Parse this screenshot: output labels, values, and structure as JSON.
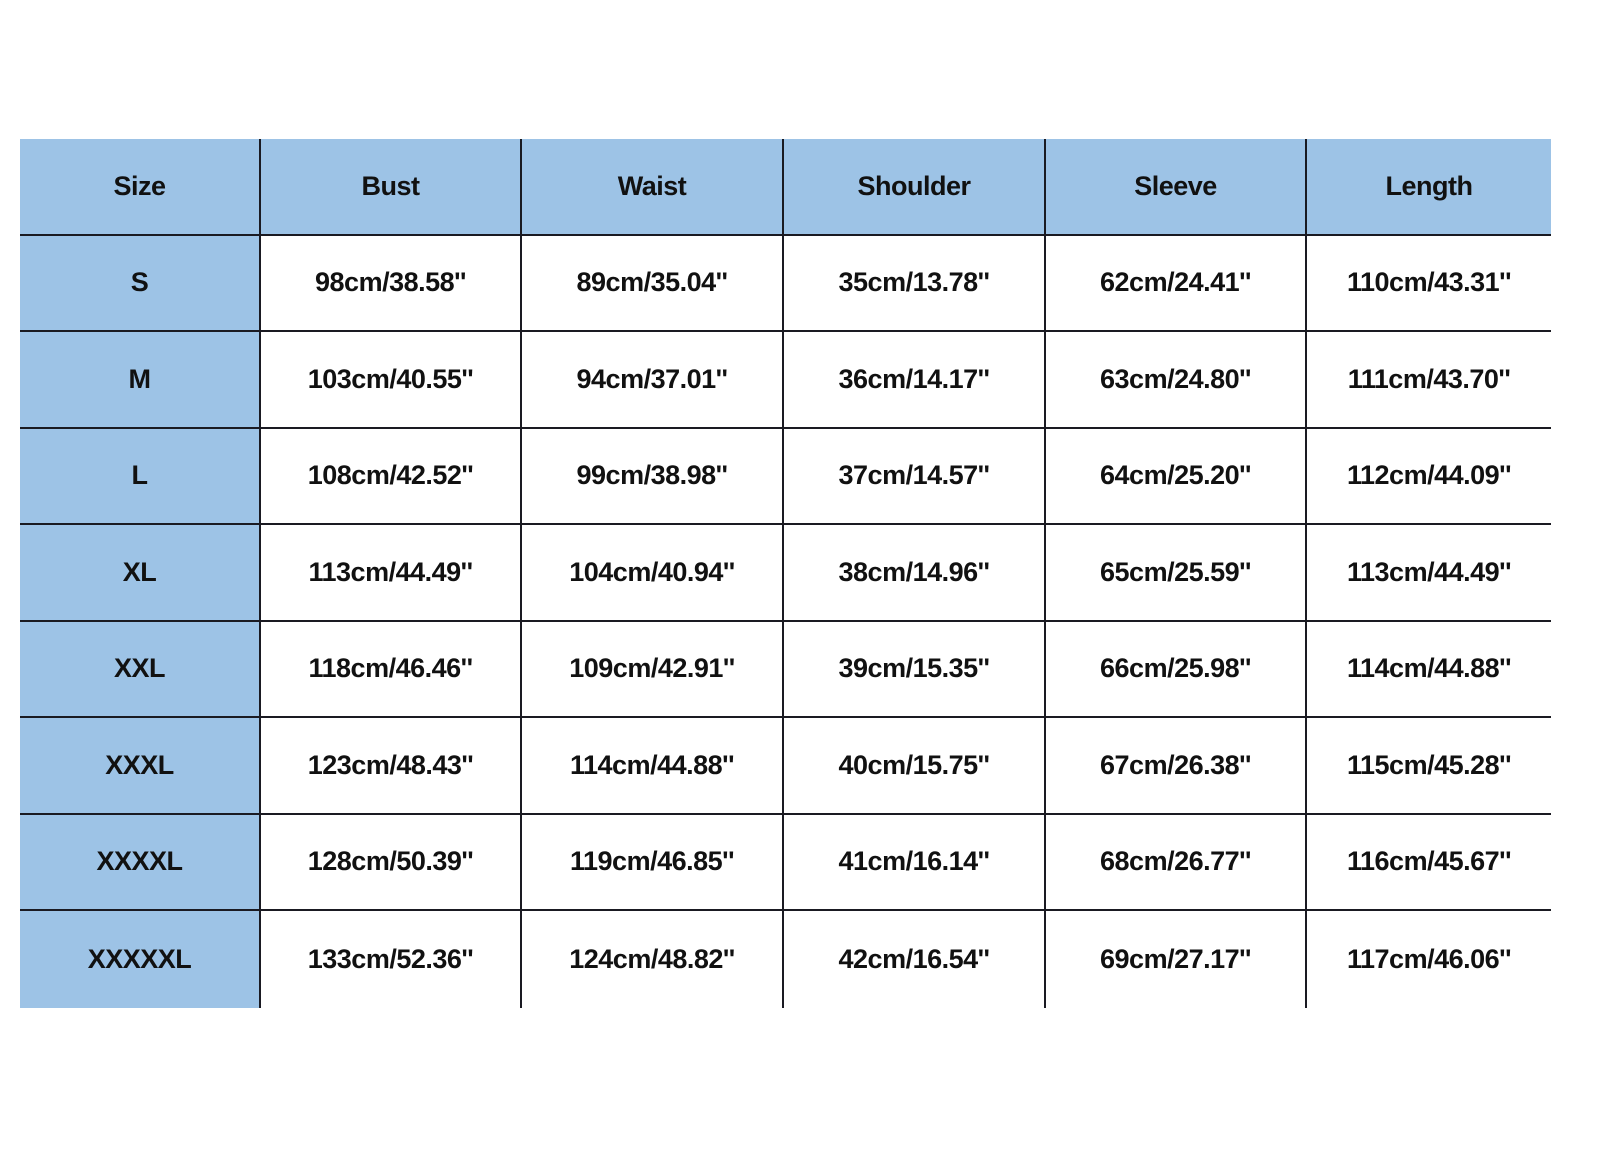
{
  "colors": {
    "header_bg": "#9dc3e6",
    "size_col_bg": "#9dc3e6",
    "grid_line": "#1a1a22"
  },
  "table": {
    "headers": [
      "Size",
      "Bust",
      "Waist",
      "Shoulder",
      "Sleeve",
      "Length"
    ],
    "rows": [
      [
        "S",
        "98cm/38.58''",
        "89cm/35.04''",
        "35cm/13.78''",
        "62cm/24.41''",
        "110cm/43.31''"
      ],
      [
        "M",
        "103cm/40.55''",
        "94cm/37.01''",
        "36cm/14.17''",
        "63cm/24.80''",
        "111cm/43.70''"
      ],
      [
        "L",
        "108cm/42.52''",
        "99cm/38.98''",
        "37cm/14.57''",
        "64cm/25.20''",
        "112cm/44.09''"
      ],
      [
        "XL",
        "113cm/44.49''",
        "104cm/40.94''",
        "38cm/14.96''",
        "65cm/25.59''",
        "113cm/44.49''"
      ],
      [
        "XXL",
        "118cm/46.46''",
        "109cm/42.91''",
        "39cm/15.35''",
        "66cm/25.98''",
        "114cm/44.88''"
      ],
      [
        "XXXL",
        "123cm/48.43''",
        "114cm/44.88''",
        "40cm/15.75''",
        "67cm/26.38''",
        "115cm/45.28''"
      ],
      [
        "XXXXL",
        "128cm/50.39''",
        "119cm/46.85''",
        "41cm/16.14''",
        "68cm/26.77''",
        "116cm/45.67''"
      ],
      [
        "XXXXXL",
        "133cm/52.36''",
        "124cm/48.82''",
        "42cm/16.54''",
        "69cm/27.17''",
        "117cm/46.06''"
      ]
    ]
  }
}
